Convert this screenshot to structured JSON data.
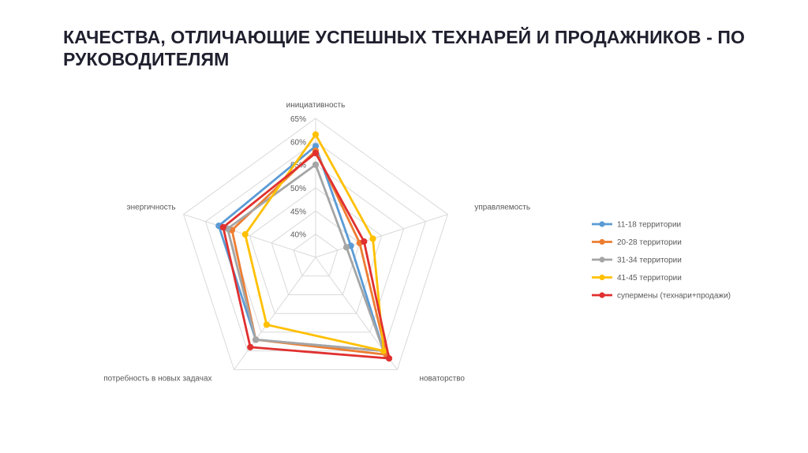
{
  "slide": {
    "title_line1": "КАЧЕСТВА, ОТЛИЧАЮЩИЕ УСПЕШНЫХ ТЕХНАРЕЙ И ПРОДАЖНИКОВ - ПО",
    "title_line2": "РУКОВОДИТЕЛЯМ"
  },
  "chart_data": {
    "type": "radar",
    "title": "",
    "axes": [
      "инициативность",
      "управляемость",
      "новаторство",
      "потребность в новых задачах",
      "энергичность"
    ],
    "tick_labels": [
      "40%",
      "45%",
      "50%",
      "55%",
      "60%",
      "65%"
    ],
    "range": [
      35,
      65
    ],
    "grid": true,
    "legend_position": "right",
    "series": [
      {
        "name": "11-18 территории",
        "color": "#5B9BD5",
        "values": [
          59,
          43,
          60,
          57,
          57
        ]
      },
      {
        "name": "20-28 территории",
        "color": "#ED7D31",
        "values": [
          58,
          45,
          61,
          57,
          54
        ]
      },
      {
        "name": "31-34 территории",
        "color": "#A5A5A5",
        "values": [
          55,
          42,
          60,
          57,
          55
        ]
      },
      {
        "name": "41-45 территории",
        "color": "#FFC000",
        "values": [
          61.5,
          48,
          60,
          53,
          51
        ]
      },
      {
        "name": "супермены (технари+продажи)",
        "color": "#E0302F",
        "values": [
          57.5,
          46,
          62,
          59,
          56
        ]
      }
    ]
  }
}
